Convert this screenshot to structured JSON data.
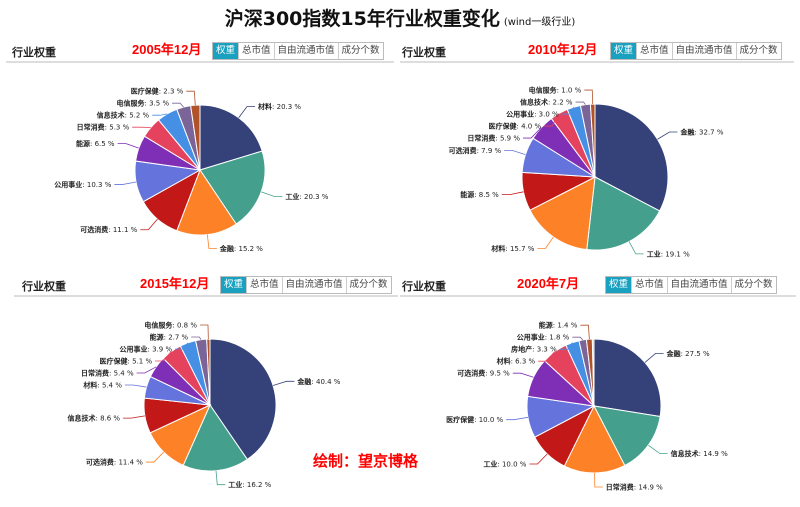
{
  "title": "沪深300指数15年行业权重变化",
  "subtitle": "(wind一级行业)",
  "credit": "绘制：望京博格",
  "panel_header": "行业权重",
  "tabs": [
    "权重",
    "总市值",
    "自由流通市值",
    "成分个数"
  ],
  "active_tab": "权重",
  "colors": [
    "#35427a",
    "#44a08c",
    "#fd8127",
    "#c21818",
    "#6474dc",
    "#7f2fb5",
    "#e5435d",
    "#4590e5",
    "#7b6497",
    "#b0522a",
    "#f2c94c"
  ],
  "chart_data": [
    {
      "type": "pie",
      "title": "2005年12月",
      "unit": "%",
      "labels": [
        "材料",
        "工业",
        "金融",
        "可选消费",
        "公用事业",
        "能源",
        "日常消费",
        "信息技术",
        "电信服务",
        "医疗保健"
      ],
      "values": [
        20.3,
        20.3,
        15.2,
        11.1,
        10.3,
        6.5,
        5.3,
        5.2,
        3.5,
        2.3
      ]
    },
    {
      "type": "pie",
      "title": "2010年12月",
      "unit": "%",
      "labels": [
        "金融",
        "工业",
        "材料",
        "能源",
        "可选消费",
        "日常消费",
        "医疗保健",
        "公用事业",
        "信息技术",
        "电信服务"
      ],
      "values": [
        32.7,
        19.1,
        15.7,
        8.5,
        7.9,
        5.9,
        4.0,
        3.0,
        2.2,
        1.0
      ]
    },
    {
      "type": "pie",
      "title": "2015年12月",
      "unit": "%",
      "labels": [
        "金融",
        "工业",
        "可选消费",
        "信息技术",
        "材料",
        "日常消费",
        "医疗保健",
        "公用事业",
        "能源",
        "电信服务"
      ],
      "values": [
        40.4,
        16.2,
        11.4,
        8.6,
        5.4,
        5.4,
        5.1,
        3.9,
        2.7,
        0.8
      ]
    },
    {
      "type": "pie",
      "title": "2020年7月",
      "unit": "%",
      "labels": [
        "金融",
        "信息技术",
        "日常消费",
        "工业",
        "医疗保健",
        "可选消费",
        "材料",
        "房地产",
        "公用事业",
        "能源",
        ""
      ],
      "values": [
        27.5,
        14.9,
        14.9,
        10.0,
        10.0,
        9.5,
        6.3,
        3.3,
        1.8,
        1.4,
        0.4
      ]
    }
  ]
}
